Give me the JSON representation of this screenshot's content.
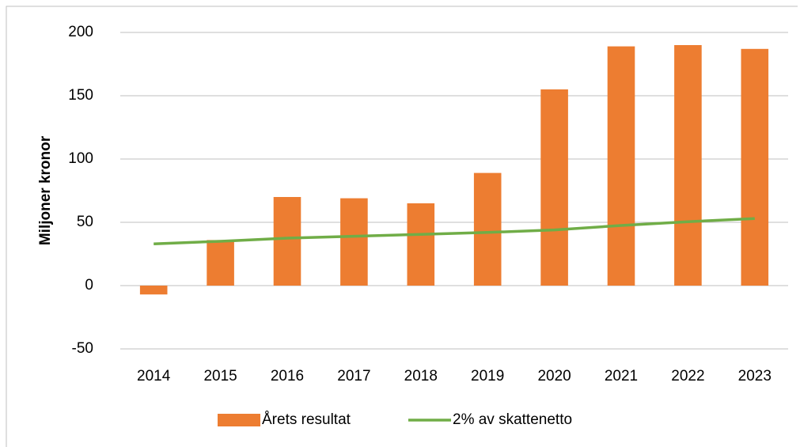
{
  "chart_data": {
    "type": "bar",
    "y_axis_label": "Miljoner kronor",
    "categories": [
      "2014",
      "2015",
      "2016",
      "2017",
      "2018",
      "2019",
      "2020",
      "2021",
      "2022",
      "2023"
    ],
    "series": [
      {
        "name": "Årets resultat",
        "type": "bar",
        "color": "#ed7d31",
        "values": [
          -7,
          36,
          70,
          69,
          65,
          89,
          155,
          189,
          190,
          187
        ]
      },
      {
        "name": "2% av skattenetto",
        "type": "line",
        "color": "#70ad47",
        "values": [
          33,
          35,
          37.5,
          39,
          40.5,
          42,
          44,
          47.5,
          50.5,
          53
        ]
      }
    ],
    "ylim": [
      -50,
      200
    ],
    "yticks": [
      -50,
      0,
      50,
      100,
      150,
      200
    ],
    "grid": true,
    "legend": "bottom"
  }
}
